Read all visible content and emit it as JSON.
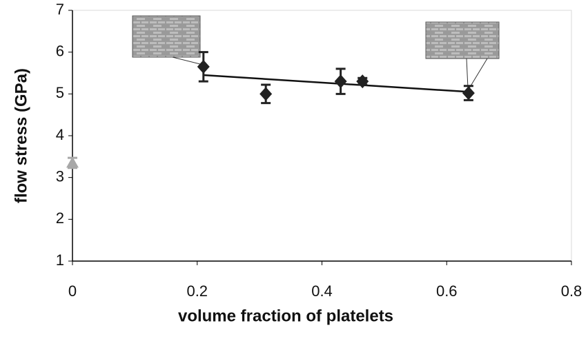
{
  "chart_data": {
    "type": "scatter",
    "x_label": "volume fraction of platelets",
    "y_label": "flow stress (GPa)",
    "xlim": [
      0,
      0.8
    ],
    "xticks": [
      0,
      0.2,
      0.4,
      0.6,
      0.8
    ],
    "ylim": [
      1,
      7
    ],
    "yticks": [
      1,
      2,
      3,
      4,
      5,
      6,
      7
    ],
    "grid": false,
    "series": [
      {
        "color": "#a8a8a8",
        "marker": "triangle",
        "x": [
          0
        ],
        "values": [
          3.35
        ],
        "errors": [
          0.12
        ]
      },
      {
        "color": "#222222",
        "marker": "diamond",
        "x": [
          0.21,
          0.31,
          0.43,
          0.465,
          0.635
        ],
        "values": [
          5.65,
          5.0,
          5.3,
          5.3,
          5.02
        ],
        "errors": [
          0.35,
          0.22,
          0.3,
          0.08,
          0.17
        ]
      }
    ],
    "trendline": {
      "color": "#111111",
      "x": [
        0.21,
        0.635
      ],
      "values": [
        5.45,
        5.05
      ]
    }
  }
}
